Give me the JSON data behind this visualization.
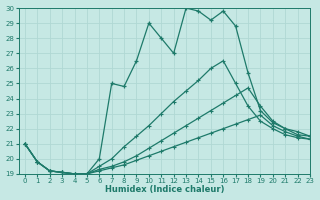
{
  "xlabel": "Humidex (Indice chaleur)",
  "xlim": [
    -0.5,
    23
  ],
  "ylim": [
    19,
    30
  ],
  "yticks": [
    19,
    20,
    21,
    22,
    23,
    24,
    25,
    26,
    27,
    28,
    29,
    30
  ],
  "xticks": [
    0,
    1,
    2,
    3,
    4,
    5,
    6,
    7,
    8,
    9,
    10,
    11,
    12,
    13,
    14,
    15,
    16,
    17,
    18,
    19,
    20,
    21,
    22,
    23
  ],
  "background_color": "#c6e8e4",
  "grid_color": "#b0d8d4",
  "line_color": "#1e7a6a",
  "line1_x": [
    0,
    1,
    2,
    3,
    4,
    5,
    6,
    7,
    8,
    9,
    10,
    11,
    12,
    13,
    14,
    15,
    16,
    17,
    18,
    19,
    20,
    21,
    22,
    23
  ],
  "line1_y": [
    21.0,
    19.8,
    19.2,
    19.1,
    19.0,
    19.0,
    20.0,
    25.0,
    24.8,
    26.5,
    29.0,
    28.0,
    27.0,
    30.0,
    29.8,
    29.2,
    29.8,
    28.8,
    25.7,
    23.2,
    22.4,
    22.0,
    21.6,
    21.5
  ],
  "line2_x": [
    0,
    1,
    2,
    3,
    4,
    5,
    6,
    7,
    8,
    9,
    10,
    11,
    12,
    13,
    14,
    15,
    16,
    17,
    18,
    19,
    20,
    21,
    22,
    23
  ],
  "line2_y": [
    21.0,
    19.8,
    19.2,
    19.1,
    19.0,
    19.0,
    19.5,
    20.0,
    20.8,
    21.5,
    22.2,
    23.0,
    23.8,
    24.5,
    25.2,
    26.0,
    26.5,
    25.0,
    23.5,
    22.5,
    22.0,
    21.6,
    21.4,
    21.3
  ],
  "line3_x": [
    0,
    1,
    2,
    3,
    4,
    5,
    6,
    7,
    8,
    9,
    10,
    11,
    12,
    13,
    14,
    15,
    16,
    17,
    18,
    19,
    20,
    21,
    22,
    23
  ],
  "line3_y": [
    21.0,
    19.8,
    19.2,
    19.1,
    19.0,
    19.0,
    19.3,
    19.5,
    19.8,
    20.2,
    20.7,
    21.2,
    21.7,
    22.2,
    22.7,
    23.2,
    23.7,
    24.2,
    24.7,
    23.5,
    22.5,
    22.0,
    21.8,
    21.5
  ],
  "line4_x": [
    0,
    1,
    2,
    3,
    4,
    5,
    6,
    7,
    8,
    9,
    10,
    11,
    12,
    13,
    14,
    15,
    16,
    17,
    18,
    19,
    20,
    21,
    22,
    23
  ],
  "line4_y": [
    21.0,
    19.8,
    19.2,
    19.1,
    19.0,
    19.0,
    19.2,
    19.4,
    19.6,
    19.9,
    20.2,
    20.5,
    20.8,
    21.1,
    21.4,
    21.7,
    22.0,
    22.3,
    22.6,
    22.9,
    22.2,
    21.8,
    21.5,
    21.3
  ]
}
